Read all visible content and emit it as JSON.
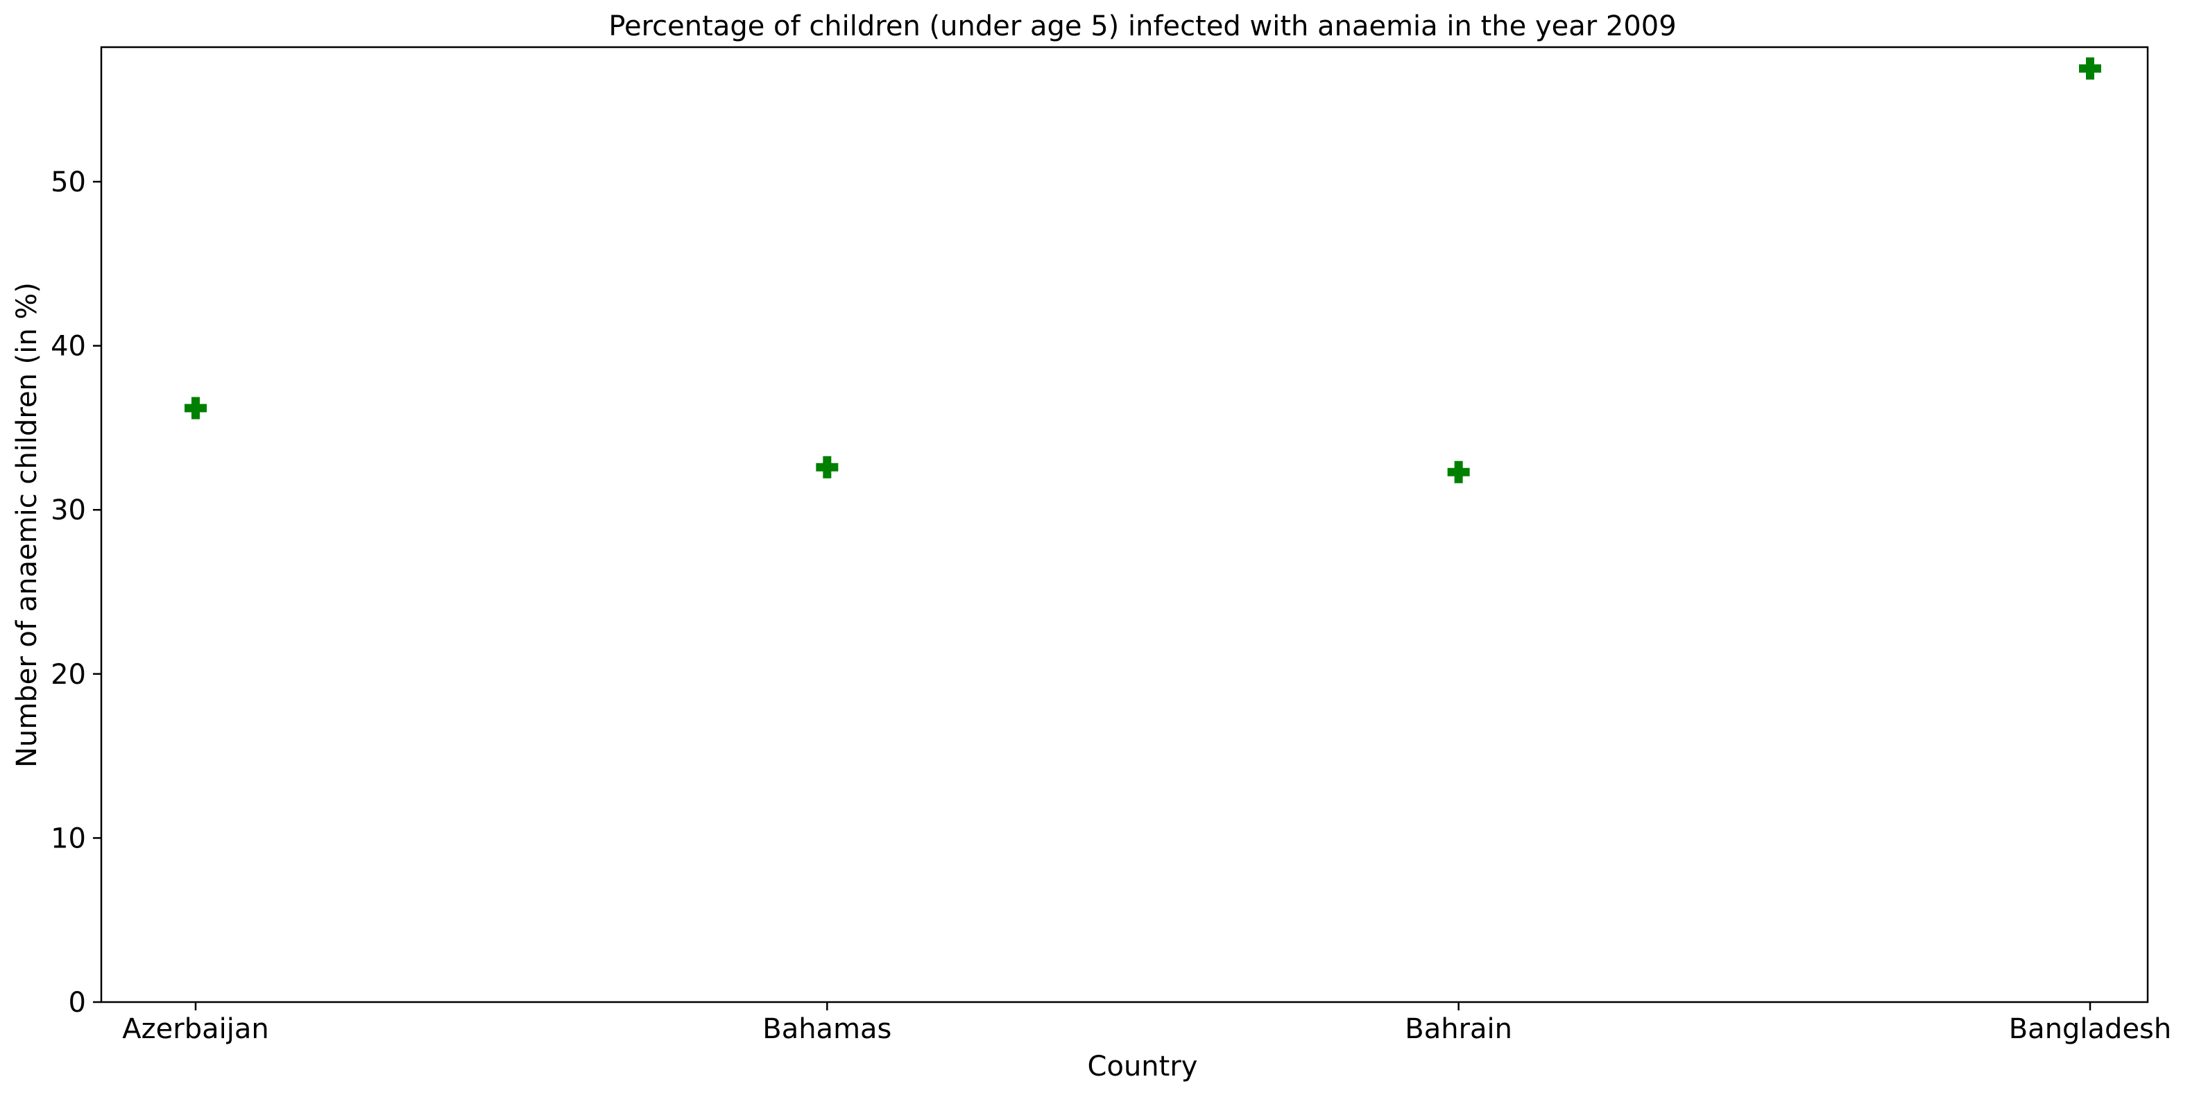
{
  "chart_data": {
    "type": "scatter",
    "title": "Percentage of children (under age 5) infected with anaemia in the year 2009",
    "xlabel": "Country",
    "ylabel": "Number of anaemic children (in %)",
    "categories": [
      "Azerbaijan",
      "Bahamas",
      "Bahrain",
      "Bangladesh"
    ],
    "values": [
      36.2,
      32.6,
      32.3,
      56.9
    ],
    "ylim": [
      0,
      58.2
    ],
    "yticks": [
      0,
      10,
      20,
      30,
      40,
      50
    ],
    "grid": false,
    "legend": "none",
    "marker": "plus-filled",
    "marker_color": "#008000"
  }
}
